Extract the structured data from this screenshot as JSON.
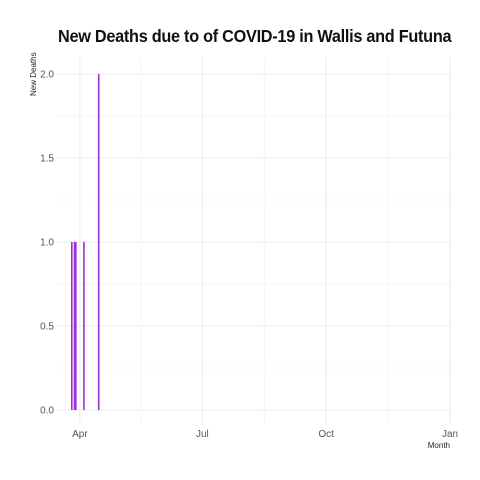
{
  "chart_data": {
    "type": "bar",
    "title": "New Deaths due to of COVID-19 in Wallis and Futuna",
    "xlabel": "Month",
    "ylabel": "New Deaths",
    "x_range": [
      "2021-03-15",
      "2022-01-01"
    ],
    "ylim": [
      0,
      2
    ],
    "y_ticks": [
      0.0,
      0.5,
      1.0,
      1.5,
      2.0
    ],
    "y_tick_labels": [
      "0.0",
      "0.5",
      "1.0",
      "1.5",
      "2.0"
    ],
    "x_ticks": [
      {
        "date": "2021-04-01",
        "label": "Apr"
      },
      {
        "date": "2021-07-01",
        "label": "Jul"
      },
      {
        "date": "2021-10-01",
        "label": "Oct"
      },
      {
        "date": "2022-01-01",
        "label": "Jan"
      }
    ],
    "grid": true,
    "legend": "none",
    "bar_color": "#9B30D9",
    "points": [
      {
        "date": "2021-03-26",
        "value": 1
      },
      {
        "date": "2021-03-28",
        "value": 1
      },
      {
        "date": "2021-03-29",
        "value": 1
      },
      {
        "date": "2021-04-04",
        "value": 1
      },
      {
        "date": "2021-04-15",
        "value": 2
      }
    ]
  }
}
